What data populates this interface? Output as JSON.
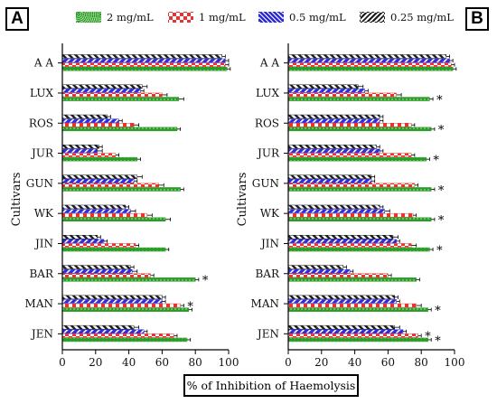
{
  "panels": [
    {
      "label": "A"
    },
    {
      "label": "B"
    }
  ],
  "xlabel": "% of Inhibition of Haemolysis",
  "legend": [
    {
      "name": "2 mg/mL",
      "pattern": "dots",
      "color": "#2c9c28"
    },
    {
      "name": "1 mg/mL",
      "pattern": "checks",
      "color": "#e8332e"
    },
    {
      "name": "0.5 mg/mL",
      "pattern": "stripes",
      "color": "#2c2cd8"
    },
    {
      "name": "0.25 mg/mL",
      "pattern": "stripes-dark",
      "color": "#1a1a1a"
    }
  ],
  "chart_data": [
    {
      "type": "bar",
      "orientation": "horizontal",
      "panel": "A",
      "ylabel": "Cultivars",
      "xlim": [
        0,
        100
      ],
      "xticks": [
        0,
        20,
        40,
        60,
        80,
        100
      ],
      "categories": [
        "A A",
        "LUX",
        "ROS",
        "JUR",
        "GUN",
        "WK",
        "JIN",
        "BAR",
        "MAN",
        "JEN"
      ],
      "series": [
        {
          "name": "2 mg/mL",
          "values": [
            99,
            70,
            69,
            45,
            71,
            62,
            62,
            80,
            76,
            75
          ],
          "errors": [
            2,
            3,
            2,
            2,
            2,
            3,
            2,
            2,
            2,
            2
          ]
        },
        {
          "name": "1 mg/mL",
          "values": [
            98,
            60,
            43,
            32,
            58,
            51,
            44,
            53,
            71,
            67
          ],
          "errors": [
            2,
            3,
            3,
            2,
            3,
            3,
            2,
            2,
            2,
            2
          ]
        },
        {
          "name": "0.5 mg/mL",
          "values": [
            98,
            47,
            34,
            21,
            43,
            41,
            25,
            42,
            60,
            49
          ],
          "errors": [
            2,
            2,
            2,
            3,
            2,
            3,
            2,
            3,
            2,
            2
          ]
        },
        {
          "name": "0.25 mg/mL",
          "values": [
            96,
            48,
            27,
            22,
            45,
            38,
            21,
            41,
            60,
            43
          ],
          "errors": [
            2,
            3,
            2,
            2,
            3,
            2,
            2,
            2,
            2,
            3
          ]
        }
      ],
      "significance": [
        {
          "category": "BAR",
          "series": "2 mg/mL",
          "mark": "*"
        },
        {
          "category": "MAN",
          "series": "1 mg/mL",
          "mark": "*"
        }
      ]
    },
    {
      "type": "bar",
      "orientation": "horizontal",
      "panel": "B",
      "ylabel": "Cultivars",
      "xlim": [
        0,
        100
      ],
      "xticks": [
        0,
        20,
        40,
        60,
        80,
        100
      ],
      "categories": [
        "A A",
        "LUX",
        "ROS",
        "JUR",
        "GUN",
        "WK",
        "JIN",
        "BAR",
        "MAN",
        "JEN"
      ],
      "series": [
        {
          "name": "2 mg/mL",
          "values": [
            99,
            85,
            86,
            83,
            86,
            86,
            85,
            77,
            84,
            84
          ],
          "errors": [
            2,
            2,
            2,
            2,
            2,
            2,
            2,
            2,
            2,
            2
          ]
        },
        {
          "name": "1 mg/mL",
          "values": [
            98,
            65,
            74,
            74,
            76,
            75,
            74,
            60,
            77,
            78
          ],
          "errors": [
            2,
            3,
            2,
            2,
            2,
            2,
            3,
            2,
            3,
            2
          ]
        },
        {
          "name": "0.5 mg/mL",
          "values": [
            97,
            46,
            55,
            55,
            50,
            58,
            65,
            37,
            65,
            69
          ],
          "errors": [
            2,
            2,
            2,
            2,
            2,
            3,
            2,
            2,
            2,
            2
          ]
        },
        {
          "name": "0.25 mg/mL",
          "values": [
            95,
            42,
            55,
            53,
            50,
            55,
            63,
            33,
            64,
            64
          ],
          "errors": [
            2,
            3,
            2,
            2,
            2,
            2,
            3,
            2,
            2,
            3
          ]
        }
      ],
      "significance": [
        {
          "category": "LUX",
          "series": "2 mg/mL",
          "mark": "*"
        },
        {
          "category": "ROS",
          "series": "2 mg/mL",
          "mark": "*"
        },
        {
          "category": "JUR",
          "series": "2 mg/mL",
          "mark": "*"
        },
        {
          "category": "GUN",
          "series": "2 mg/mL",
          "mark": "*"
        },
        {
          "category": "WK",
          "series": "2 mg/mL",
          "mark": "*"
        },
        {
          "category": "JIN",
          "series": "2 mg/mL",
          "mark": "*"
        },
        {
          "category": "MAN",
          "series": "2 mg/mL",
          "mark": "*"
        },
        {
          "category": "JEN",
          "series": "1 mg/mL",
          "mark": "*"
        },
        {
          "category": "JEN",
          "series": "2 mg/mL",
          "mark": "*"
        }
      ]
    }
  ]
}
